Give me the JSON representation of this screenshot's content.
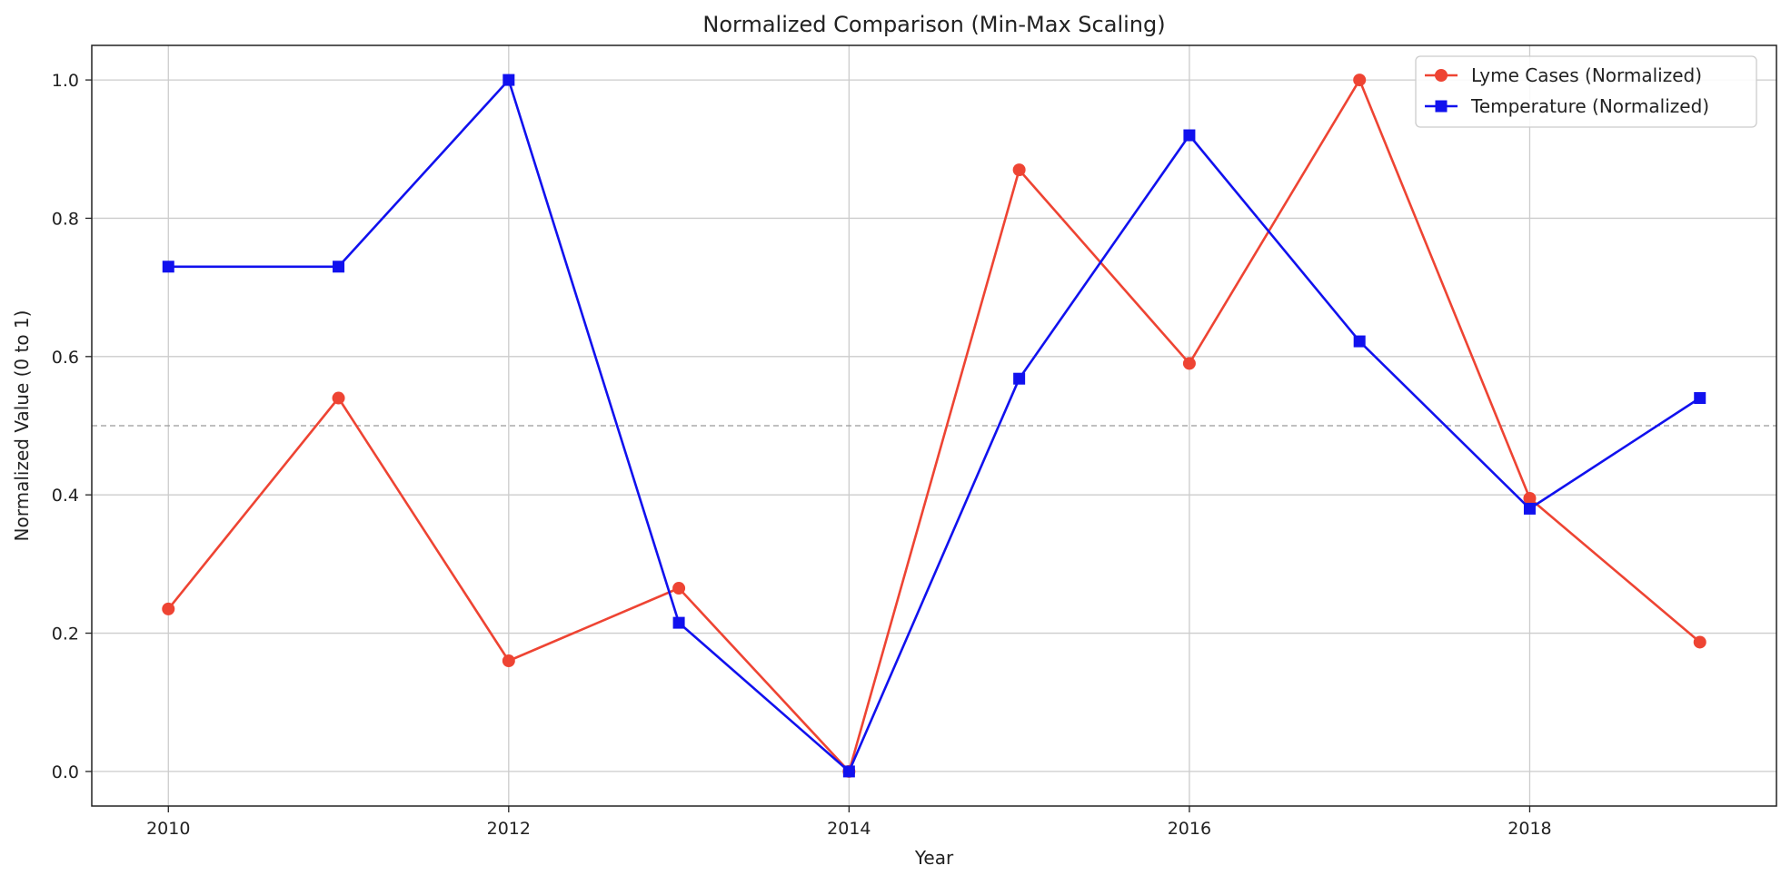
{
  "chart_data": {
    "type": "line",
    "title": "Normalized Comparison (Min-Max Scaling)",
    "xlabel": "Year",
    "ylabel": "Normalized Value (0 to 1)",
    "x": [
      2010,
      2011,
      2012,
      2013,
      2014,
      2015,
      2016,
      2017,
      2018,
      2019
    ],
    "xlim": [
      2009.55,
      2019.45
    ],
    "ylim": [
      -0.05,
      1.05
    ],
    "xticks": [
      2010,
      2012,
      2014,
      2016,
      2018
    ],
    "yticks": [
      0.0,
      0.2,
      0.4,
      0.6,
      0.8,
      1.0
    ],
    "ytick_labels": [
      "0.0",
      "0.2",
      "0.4",
      "0.6",
      "0.8",
      "1.0"
    ],
    "grid": true,
    "reference_line": {
      "y": 0.5,
      "style": "dashed",
      "color": "#999999"
    },
    "legend_position": "upper-right",
    "series": [
      {
        "name": "Lyme Cases (Normalized)",
        "color": "#ee4433",
        "marker": "circle",
        "values": [
          0.235,
          0.54,
          0.16,
          0.265,
          0.0,
          0.87,
          0.59,
          1.0,
          0.395,
          0.187
        ]
      },
      {
        "name": "Temperature (Normalized)",
        "color": "#1111ee",
        "marker": "square",
        "values": [
          0.73,
          0.73,
          1.0,
          0.215,
          0.0,
          0.568,
          0.92,
          0.622,
          0.38,
          0.54
        ]
      }
    ]
  }
}
